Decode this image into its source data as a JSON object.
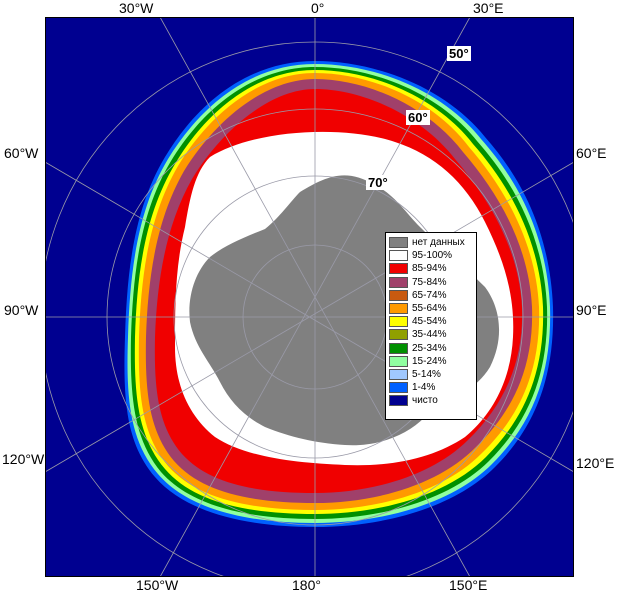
{
  "map": {
    "longitude_labels_top": [
      "30°W",
      "0°",
      "30°E"
    ],
    "longitude_labels_bottom": [
      "150°W",
      "180°",
      "150°E"
    ],
    "longitude_labels_left": [
      "60°W",
      "90°W",
      "120°W"
    ],
    "longitude_labels_right": [
      "60°E",
      "90°E",
      "120°E"
    ],
    "latitude_labels": [
      "50°",
      "60°",
      "70°"
    ]
  },
  "legend": {
    "items": [
      {
        "label": "нет данных",
        "color": "#808080"
      },
      {
        "label": "95-100%",
        "color": "#ffffff"
      },
      {
        "label": "85-94%",
        "color": "#f00000"
      },
      {
        "label": "75-84%",
        "color": "#a0406a"
      },
      {
        "label": "65-74%",
        "color": "#c85a10"
      },
      {
        "label": "55-64%",
        "color": "#ff9a00"
      },
      {
        "label": "45-54%",
        "color": "#ffff00"
      },
      {
        "label": "35-44%",
        "color": "#90a000"
      },
      {
        "label": "25-34%",
        "color": "#009000"
      },
      {
        "label": "15-24%",
        "color": "#90ffa0"
      },
      {
        "label": "5-14%",
        "color": "#a0c8ff"
      },
      {
        "label": "1-4%",
        "color": "#0060ff"
      },
      {
        "label": "чисто",
        "color": "#000090"
      }
    ]
  }
}
